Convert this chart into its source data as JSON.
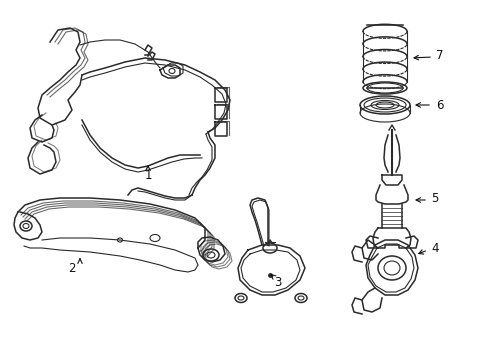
{
  "bg_color": "#ffffff",
  "line_color": "#2a2a2a",
  "label_color": "#111111",
  "labels": [
    "1",
    "2",
    "3",
    "4",
    "5",
    "6",
    "7"
  ],
  "figsize": [
    4.89,
    3.6
  ],
  "dpi": 100,
  "xlim": [
    0,
    489
  ],
  "ylim": [
    0,
    360
  ]
}
